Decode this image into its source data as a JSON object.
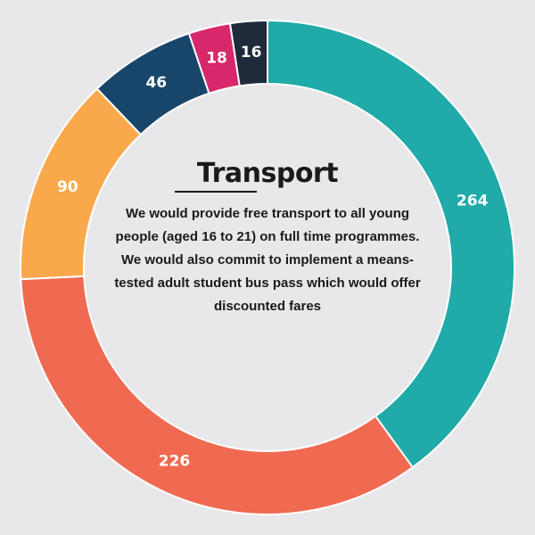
{
  "chart_data": {
    "type": "pie",
    "style": "donut",
    "title": "Transport",
    "description": "We would provide free transport to all young people (aged 16 to 21) on full time programmes. We would also commit to implement a means-tested adult student bus pass which would offer discounted fares",
    "slices": [
      {
        "value": 264,
        "color": "#20aaa8"
      },
      {
        "value": 226,
        "color": "#f06a52"
      },
      {
        "value": 90,
        "color": "#f9a94b"
      },
      {
        "value": 46,
        "color": "#17466a"
      },
      {
        "value": 18,
        "color": "#d6286a"
      },
      {
        "value": 16,
        "color": "#1f2a3a"
      }
    ],
    "separator_color": "#ffffff"
  }
}
